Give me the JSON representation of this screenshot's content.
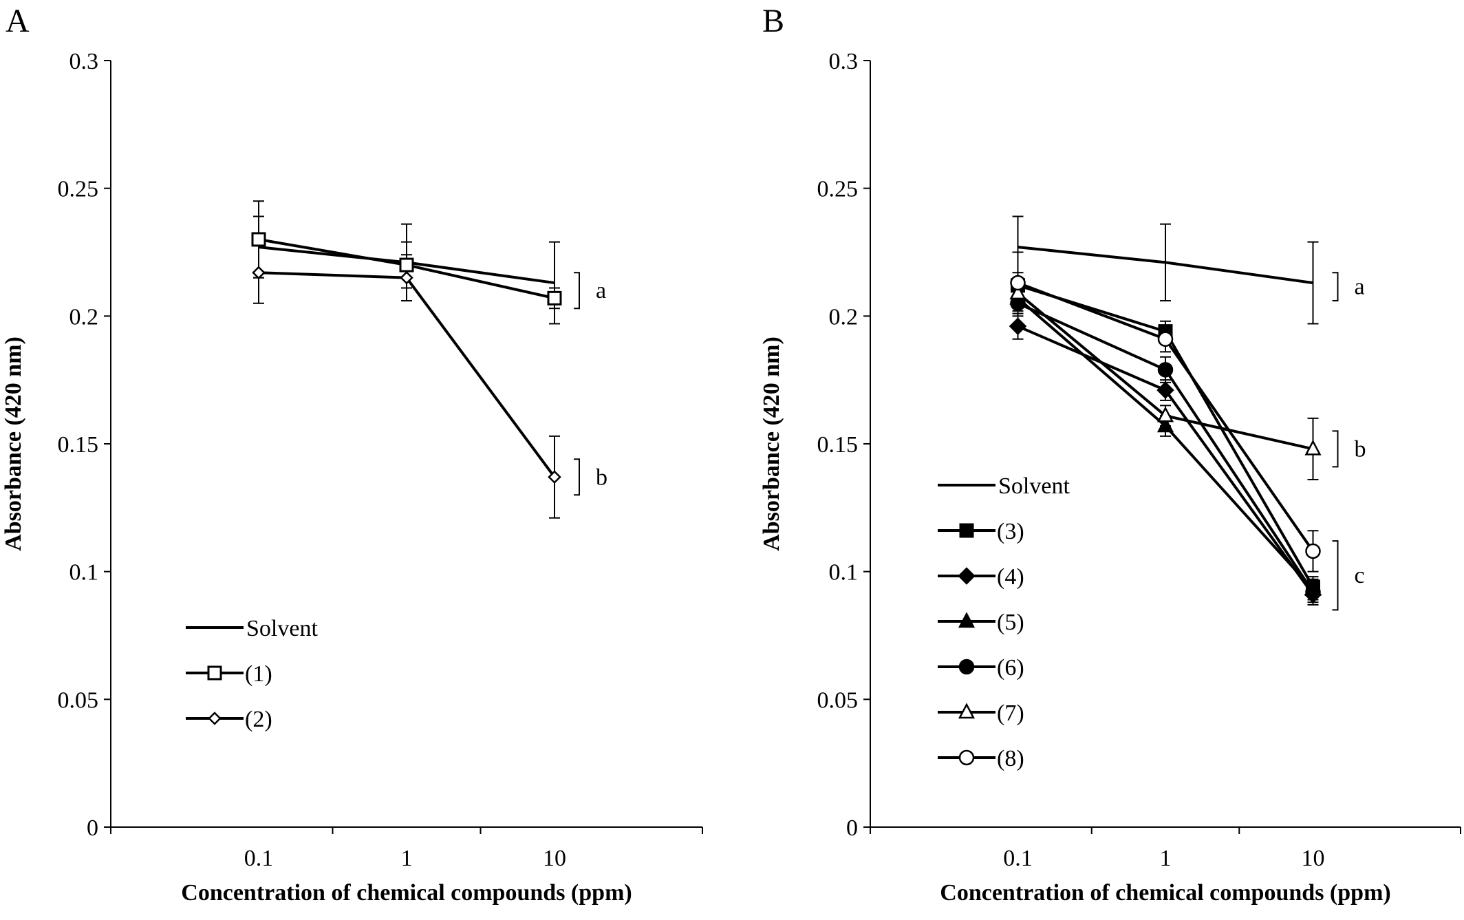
{
  "chart_data": [
    {
      "panel": "A",
      "type": "line",
      "xlabel": "Concentration of chemical compounds (ppm)",
      "ylabel": "Absorbance (420 nm)",
      "x_scale": "log",
      "categories": [
        "0.1",
        "1",
        "10"
      ],
      "y_ticks": [
        "0",
        "0.05",
        "0.1",
        "0.15",
        "0.2",
        "0.25",
        "0.3"
      ],
      "ylim": [
        0,
        0.3
      ],
      "grid": false,
      "legend_placement": "lower-left",
      "series": [
        {
          "name": "Solvent",
          "marker": "none",
          "values": [
            0.227,
            0.221,
            0.213
          ],
          "errors": [
            0.012,
            0.015,
            0.016
          ]
        },
        {
          "name": "(1)",
          "marker": "open-square",
          "values": [
            0.23,
            0.22,
            0.207
          ],
          "errors": [
            0.015,
            0.009,
            0.004
          ]
        },
        {
          "name": "(2)",
          "marker": "open-diamond",
          "values": [
            0.217,
            0.215,
            0.137
          ],
          "errors": [
            0.012,
            0.009,
            0.016
          ]
        }
      ],
      "significance": [
        {
          "label": "a",
          "y_range": [
            0.203,
            0.217
          ]
        },
        {
          "label": "b",
          "y_range": [
            0.13,
            0.144
          ]
        }
      ]
    },
    {
      "panel": "B",
      "type": "line",
      "xlabel": "Concentration of chemical compounds (ppm)",
      "ylabel": "Absorbance (420 nm)",
      "x_scale": "log",
      "categories": [
        "0.1",
        "1",
        "10"
      ],
      "y_ticks": [
        "0",
        "0.05",
        "0.1",
        "0.15",
        "0.2",
        "0.25",
        "0.3"
      ],
      "ylim": [
        0,
        0.3
      ],
      "grid": false,
      "legend_placement": "lower-left",
      "series": [
        {
          "name": "Solvent",
          "marker": "none",
          "values": [
            0.227,
            0.221,
            0.213
          ],
          "errors": [
            0.012,
            0.015,
            0.016
          ]
        },
        {
          "name": "(3)",
          "marker": "filled-square",
          "values": [
            0.212,
            0.194,
            0.094
          ],
          "errors": [
            0.005,
            0.004,
            0.004
          ]
        },
        {
          "name": "(4)",
          "marker": "filled-diamond",
          "values": [
            0.196,
            0.171,
            0.091
          ],
          "errors": [
            0.005,
            0.004,
            0.004
          ]
        },
        {
          "name": "(5)",
          "marker": "filled-triangle",
          "values": [
            0.207,
            0.157,
            0.093
          ],
          "errors": [
            0.005,
            0.004,
            0.004
          ]
        },
        {
          "name": "(6)",
          "marker": "filled-circle",
          "values": [
            0.205,
            0.179,
            0.092
          ],
          "errors": [
            0.005,
            0.005,
            0.004
          ]
        },
        {
          "name": "(7)",
          "marker": "open-triangle",
          "values": [
            0.209,
            0.161,
            0.148
          ],
          "errors": [
            0.004,
            0.004,
            0.012
          ]
        },
        {
          "name": "(8)",
          "marker": "open-circle",
          "values": [
            0.213,
            0.191,
            0.108
          ],
          "errors": [
            0.012,
            0.005,
            0.008
          ]
        }
      ],
      "significance": [
        {
          "label": "a",
          "y_range": [
            0.206,
            0.217
          ]
        },
        {
          "label": "b",
          "y_range": [
            0.141,
            0.155
          ]
        },
        {
          "label": "c",
          "y_range": [
            0.085,
            0.112
          ]
        }
      ]
    }
  ]
}
